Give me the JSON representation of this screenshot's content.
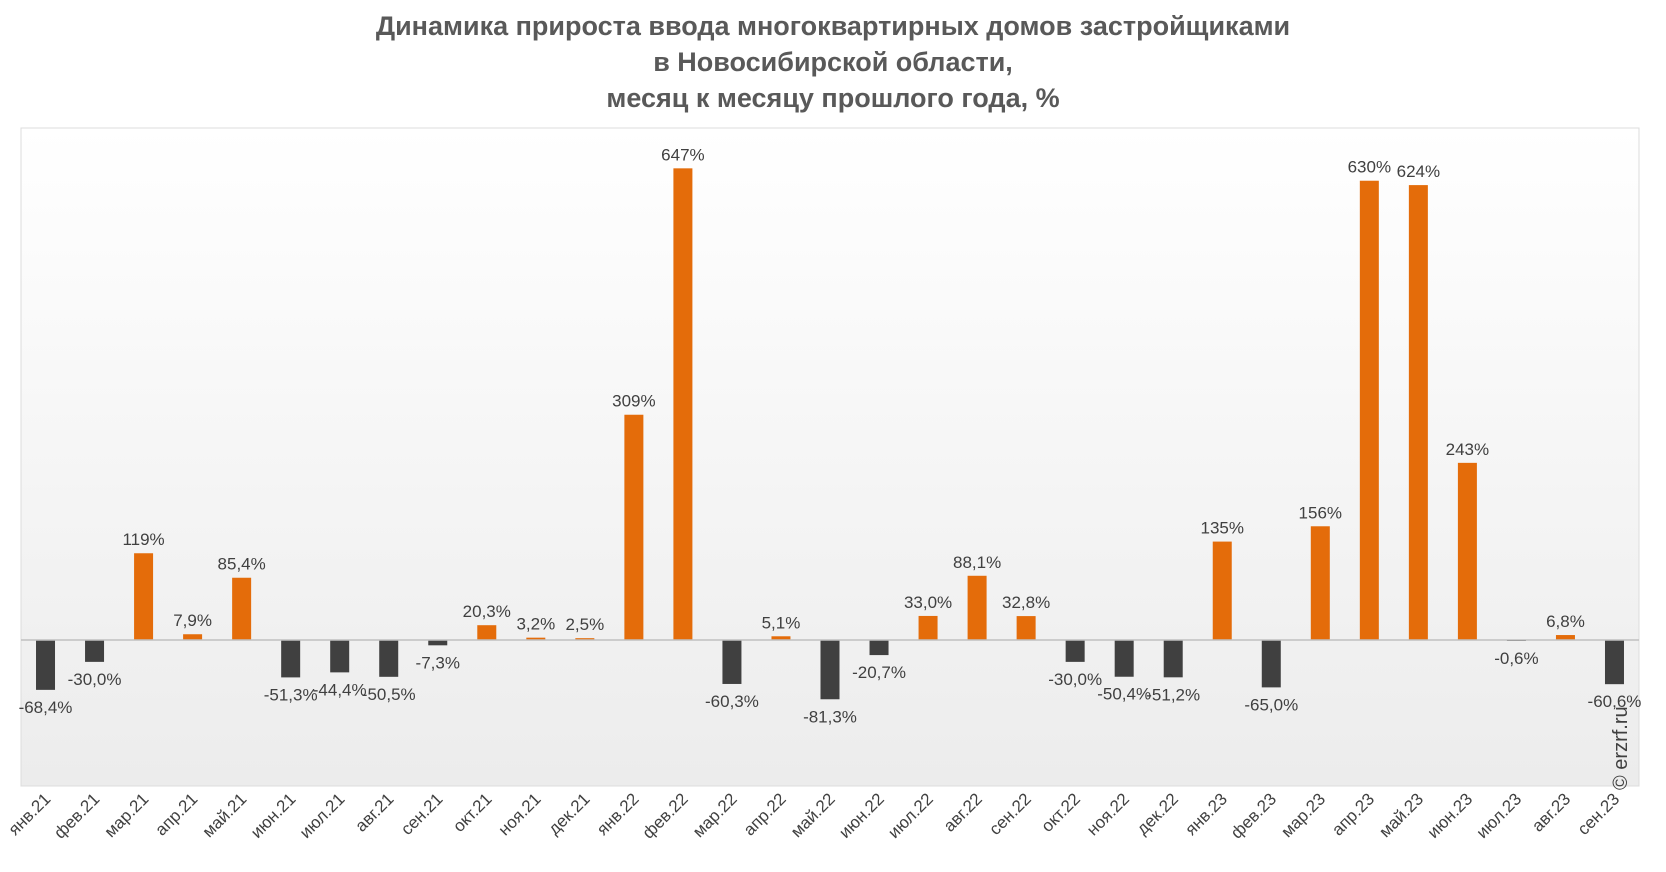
{
  "title_lines": [
    "Динамика прироста ввода многоквартирных домов застройщиками",
    "в Новосибирской области,",
    "месяц к месяцу прошлого года, %"
  ],
  "watermark": "© erzrf.ru",
  "colors": {
    "positive": "#E46C0A",
    "negative": "#404040",
    "title": "#595959",
    "label": "#404040"
  },
  "chart_data": {
    "type": "bar",
    "title": "Динамика прироста ввода многоквартирных домов застройщиками в Новосибирской области, месяц к месяцу прошлого года, %",
    "xlabel": "",
    "ylabel": "",
    "categories": [
      "янв.21",
      "фев.21",
      "мар.21",
      "апр.21",
      "май.21",
      "июн.21",
      "июл.21",
      "авг.21",
      "сен.21",
      "окт.21",
      "ноя.21",
      "дек.21",
      "янв.22",
      "фев.22",
      "мар.22",
      "апр.22",
      "май.22",
      "июн.22",
      "июл.22",
      "авг.22",
      "сен.22",
      "окт.22",
      "ноя.22",
      "дек.22",
      "янв.23",
      "фев.23",
      "мар.23",
      "апр.23",
      "май.23",
      "июн.23",
      "июл.23",
      "авг.23",
      "сен.23"
    ],
    "values": [
      -68.4,
      -30.0,
      119,
      7.9,
      85.4,
      -51.3,
      -44.4,
      -50.5,
      -7.3,
      20.3,
      3.2,
      2.5,
      309,
      647,
      -60.3,
      5.1,
      -81.3,
      -20.7,
      33.0,
      88.1,
      32.8,
      -30.0,
      -50.4,
      -51.2,
      135,
      -65.0,
      156,
      630,
      624,
      243,
      -0.6,
      6.8,
      -60.6
    ],
    "data_labels": [
      "-68,4%",
      "-30,0%",
      "119%",
      "7,9%",
      "85,4%",
      "-51,3%",
      "-44,4%",
      "-50,5%",
      "-7,3%",
      "20,3%",
      "3,2%",
      "2,5%",
      "309%",
      "647%",
      "-60,3%",
      "5,1%",
      "-81,3%",
      "-20,7%",
      "33,0%",
      "88,1%",
      "32,8%",
      "-30,0%",
      "-50,4%",
      "-51,2%",
      "135%",
      "-65,0%",
      "156%",
      "630%",
      "624%",
      "243%",
      "-0,6%",
      "6,8%",
      "-60,6%"
    ],
    "ylim": [
      -200,
      700
    ],
    "grid": false,
    "legend": "none"
  }
}
